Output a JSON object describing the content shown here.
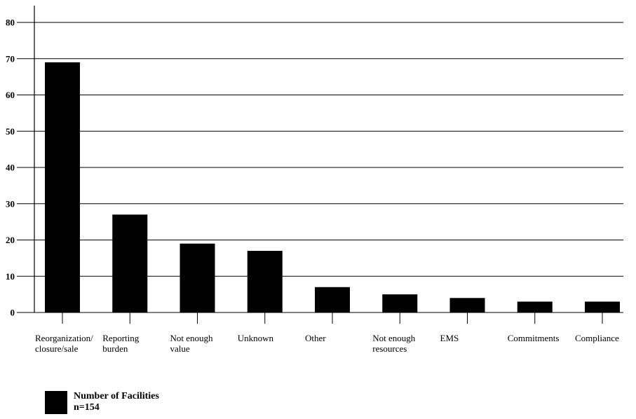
{
  "chart_data": {
    "type": "bar",
    "categories": [
      [
        "Reorganization/",
        "closure/sale"
      ],
      [
        "Reporting",
        "burden"
      ],
      [
        "Not enough",
        "value"
      ],
      [
        "Unknown"
      ],
      [
        "Other"
      ],
      [
        "Not enough",
        "resources"
      ],
      [
        "EMS"
      ],
      [
        "Commitments"
      ],
      [
        "Compliance"
      ]
    ],
    "series": [
      {
        "name": "Number of Facilities",
        "values": [
          69,
          27,
          19,
          17,
          7,
          5,
          4,
          3,
          3
        ]
      }
    ],
    "legend_note": "n=154",
    "ylim": [
      0,
      80
    ],
    "yticks": [
      0,
      10,
      20,
      30,
      40,
      50,
      60,
      70,
      80
    ],
    "grid": true,
    "bar_color": "#000000",
    "legend_position": "bottom-left"
  }
}
